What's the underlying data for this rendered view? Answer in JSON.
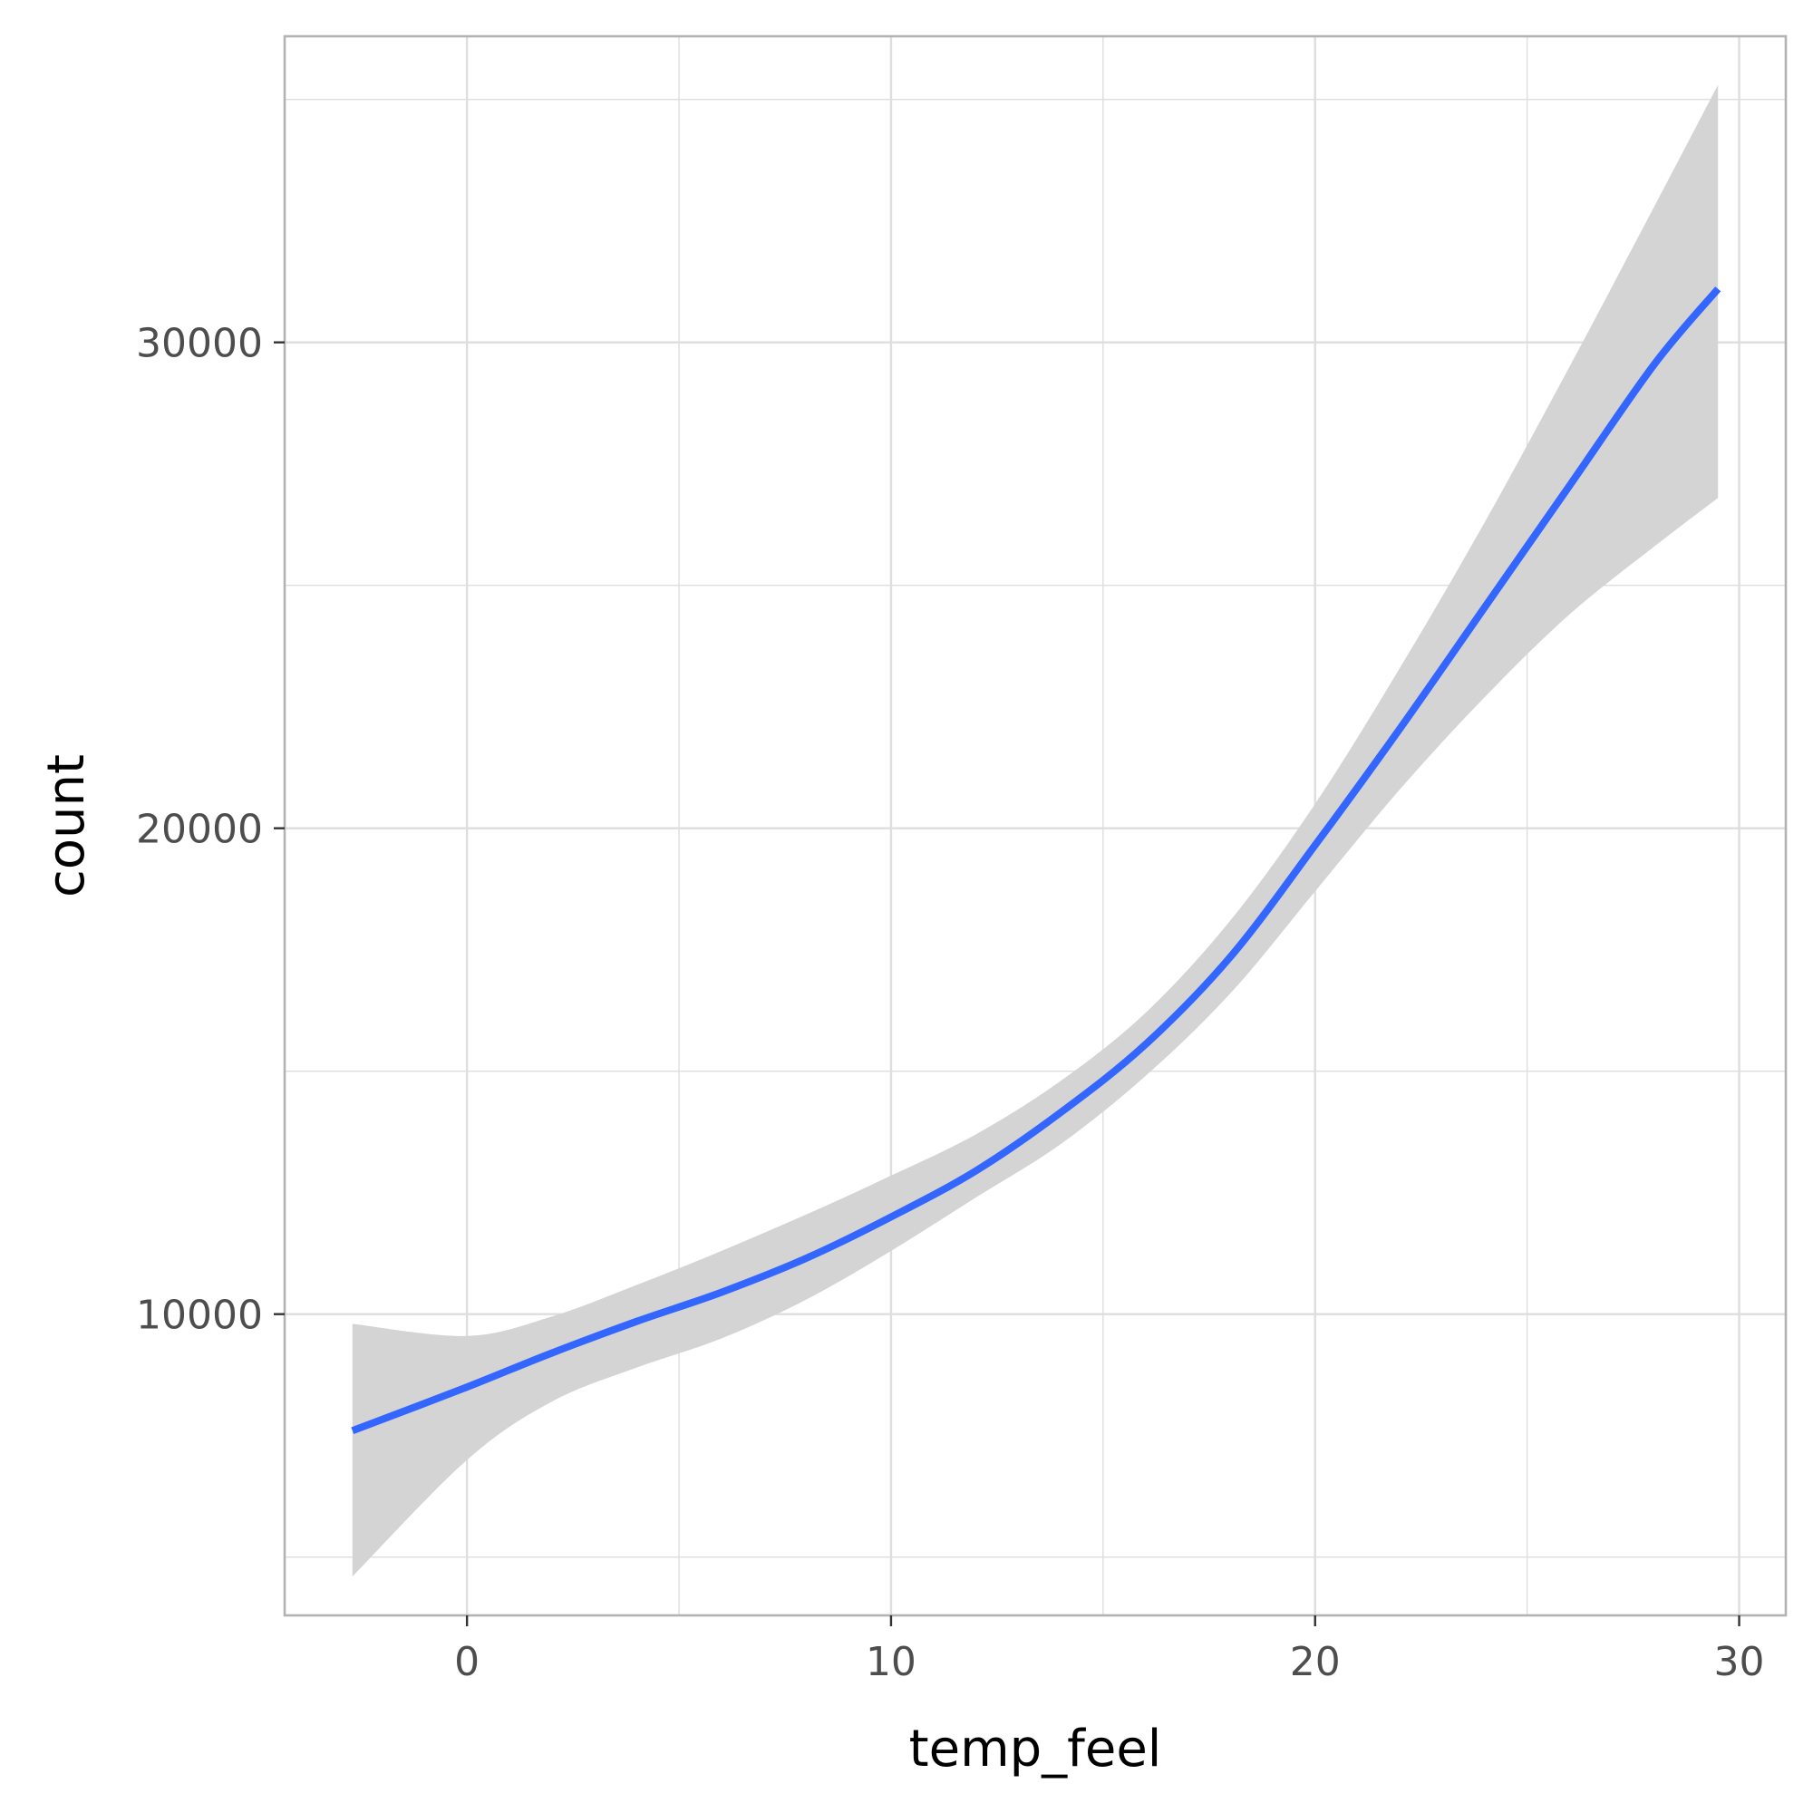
{
  "chart_data": {
    "type": "line",
    "title": "",
    "xlabel": "temp_feel",
    "ylabel": "count",
    "xlim": [
      -4.3,
      31.1
    ],
    "ylim": [
      3800,
      36300
    ],
    "x_ticks": [
      0,
      10,
      20,
      30
    ],
    "y_ticks": [
      10000,
      20000,
      30000
    ],
    "x_tick_labels": [
      "0",
      "10",
      "20",
      "30"
    ],
    "y_tick_labels": [
      "10000",
      "20000",
      "30000"
    ],
    "grid": true,
    "legend": "none",
    "series": [
      {
        "role": "smooth fit",
        "x": [
          -2.7,
          0,
          2,
          4,
          6,
          8,
          10,
          12,
          14,
          16,
          18,
          20,
          22,
          24,
          26,
          28,
          29.5
        ],
        "y": [
          7600,
          8500,
          9200,
          9850,
          10450,
          11150,
          12000,
          12950,
          14150,
          15550,
          17350,
          19650,
          22050,
          24550,
          27050,
          29550,
          31100
        ],
        "ci_lower": [
          4600,
          7000,
          8200,
          8900,
          9500,
          10300,
          11300,
          12400,
          13500,
          14900,
          16600,
          18700,
          20800,
          22700,
          24400,
          25800,
          26800
        ],
        "ci_upper": [
          9800,
          9550,
          9950,
          10600,
          11300,
          12050,
          12850,
          13700,
          14800,
          16200,
          18100,
          20500,
          23300,
          26300,
          29500,
          32800,
          35300
        ]
      }
    ],
    "colors": {
      "line": "#3366ff",
      "ribbon": "#d4d4d4",
      "grid": "#dedede",
      "panel_border": "#b3b3b3",
      "tick_text": "#4d4d4d",
      "title_text": "#000000"
    }
  }
}
